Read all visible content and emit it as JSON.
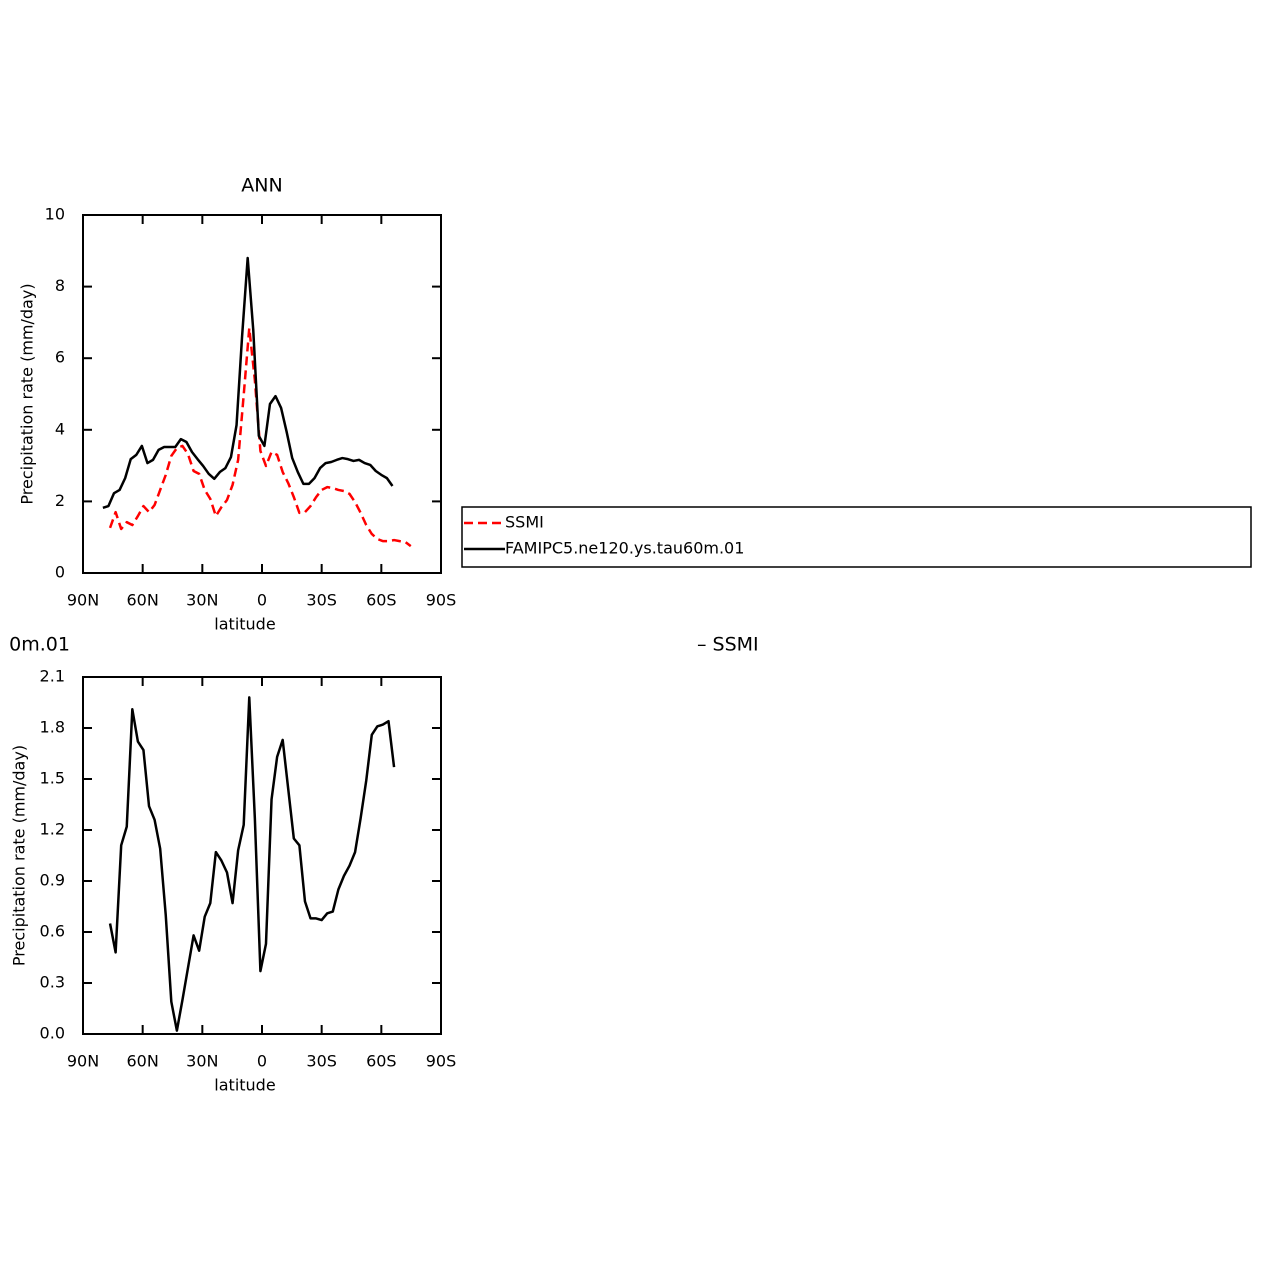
{
  "chart_data": [
    {
      "type": "line",
      "title": "ANN",
      "xlabel": "latitude",
      "ylabel": "Precipitation rate (mm/day)",
      "xlim": [
        90,
        -90
      ],
      "xticks": [
        {
          "value": 90,
          "label": "90N"
        },
        {
          "value": 60,
          "label": "60N"
        },
        {
          "value": 30,
          "label": "30N"
        },
        0,
        {
          "value": -30,
          "label": "30S"
        },
        {
          "value": -60,
          "label": "60S"
        },
        {
          "value": -90,
          "label": "90S"
        }
      ],
      "ylim": [
        0,
        10
      ],
      "yticks": [
        0,
        2,
        4,
        6,
        8,
        10
      ],
      "legend": "right",
      "series": [
        {
          "name": "SSMI",
          "color": "#ff0000",
          "dashed": true,
          "x": [
            76.4,
            73.6,
            70.8,
            68,
            65.2,
            62.4,
            59.6,
            56.8,
            54,
            51.2,
            48.4,
            45.6,
            42.8,
            40,
            37.2,
            34.4,
            31.6,
            28.8,
            26,
            23.2,
            20.4,
            17.6,
            14.8,
            12,
            9.2,
            6.4,
            3.6,
            0.8,
            -2,
            -4.8,
            -7.6,
            -10.4,
            -13.2,
            -16,
            -18.8,
            -21.6,
            -24.4,
            -27.2,
            -30,
            -32.8,
            -35.6,
            -38.4,
            -41.2,
            -44,
            -46.8,
            -49.6,
            -52.4,
            -55.2,
            -58,
            -60.8,
            -63.6,
            -66.4,
            -69.2,
            -72,
            -74.8
          ],
          "values": [
            1.26,
            1.7,
            1.23,
            1.42,
            1.34,
            1.59,
            1.87,
            1.7,
            1.9,
            2.32,
            2.74,
            3.27,
            3.49,
            3.55,
            3.32,
            2.85,
            2.77,
            2.32,
            2.07,
            1.59,
            1.84,
            2.04,
            2.46,
            3.16,
            4.97,
            6.84,
            5.39,
            3.41,
            2.99,
            3.38,
            3.3,
            2.82,
            2.51,
            2.12,
            1.68,
            1.7,
            1.87,
            2.12,
            2.32,
            2.4,
            2.37,
            2.32,
            2.29,
            2.21,
            1.98,
            1.68,
            1.34,
            1.09,
            0.95,
            0.89,
            0.89,
            0.92,
            0.89,
            0.87,
            0.75
          ]
        },
        {
          "name": "FAMIPC5.ne120.ys.tau60m.01",
          "color": "#000000",
          "dashed": false,
          "x": [
            80,
            77.2,
            74.4,
            71.6,
            68.8,
            66,
            63.2,
            60.4,
            57.6,
            54.8,
            52,
            49.2,
            46.4,
            43.6,
            40.8,
            38,
            35.2,
            32.4,
            29.6,
            26.8,
            24,
            21.2,
            18.4,
            15.6,
            12.8,
            10,
            7.2,
            4.4,
            1.6,
            -1.2,
            -4,
            -6.8,
            -9.6,
            -12.4,
            -15.2,
            -18,
            -20.8,
            -23.6,
            -26.4,
            -29.2,
            -32,
            -34.8,
            -37.6,
            -40.4,
            -43.2,
            -46,
            -48.8,
            -51.6,
            -54.4,
            -57.2,
            -60,
            -62.8,
            -65.6
          ],
          "values": [
            1.82,
            1.87,
            2.23,
            2.32,
            2.65,
            3.18,
            3.3,
            3.55,
            3.07,
            3.16,
            3.44,
            3.52,
            3.52,
            3.52,
            3.74,
            3.66,
            3.38,
            3.18,
            2.99,
            2.77,
            2.63,
            2.82,
            2.93,
            3.24,
            4.13,
            6.62,
            8.8,
            6.79,
            3.83,
            3.55,
            4.72,
            4.94,
            4.61,
            3.94,
            3.21,
            2.82,
            2.49,
            2.49,
            2.65,
            2.93,
            3.07,
            3.1,
            3.16,
            3.21,
            3.18,
            3.13,
            3.16,
            3.07,
            3.02,
            2.85,
            2.74,
            2.65,
            2.43
          ]
        }
      ]
    },
    {
      "type": "line",
      "title": "0m.01",
      "annotation": "–  SSMI",
      "xlabel": "latitude",
      "ylabel": "Precipitation rate (mm/day)",
      "xlim": [
        90,
        -90
      ],
      "xticks": [
        {
          "value": 90,
          "label": "90N"
        },
        {
          "value": 60,
          "label": "60N"
        },
        {
          "value": 30,
          "label": "30N"
        },
        0,
        {
          "value": -30,
          "label": "30S"
        },
        {
          "value": -60,
          "label": "60S"
        },
        {
          "value": -90,
          "label": "90S"
        }
      ],
      "ylim": [
        0,
        2.1
      ],
      "yticks": [
        {
          "value": 0,
          "label": "0.0"
        },
        0.3,
        0.6,
        0.9,
        1.2,
        1.5,
        1.8,
        2.1
      ],
      "color": "#000000",
      "x": [
        76.4,
        73.6,
        70.8,
        68,
        65.2,
        62.4,
        59.6,
        56.8,
        54,
        51.2,
        48.4,
        45.6,
        42.8,
        40,
        37.2,
        34.4,
        31.6,
        28.8,
        26,
        23.2,
        20.4,
        17.6,
        14.8,
        12,
        9.2,
        6.4,
        3.6,
        0.8,
        -2,
        -4.8,
        -7.6,
        -10.4,
        -13.2,
        -16,
        -18.8,
        -21.6,
        -24.4,
        -27.2,
        -30,
        -32.8,
        -35.6,
        -38.4,
        -41.2,
        -44,
        -46.8,
        -49.6,
        -52.4,
        -55.2,
        -58,
        -60.8,
        -63.6,
        -66.4
      ],
      "values": [
        0.65,
        0.48,
        1.11,
        1.22,
        1.91,
        1.72,
        1.67,
        1.34,
        1.26,
        1.09,
        0.7,
        0.19,
        0.02,
        0.2,
        0.39,
        0.58,
        0.49,
        0.69,
        0.77,
        1.07,
        1.02,
        0.95,
        0.77,
        1.08,
        1.23,
        1.98,
        1.27,
        0.37,
        0.53,
        1.38,
        1.63,
        1.73,
        1.44,
        1.15,
        1.11,
        0.78,
        0.68,
        0.68,
        0.67,
        0.71,
        0.72,
        0.85,
        0.93,
        0.99,
        1.07,
        1.27,
        1.49,
        1.76,
        1.81,
        1.82,
        1.84,
        1.57
      ]
    }
  ]
}
